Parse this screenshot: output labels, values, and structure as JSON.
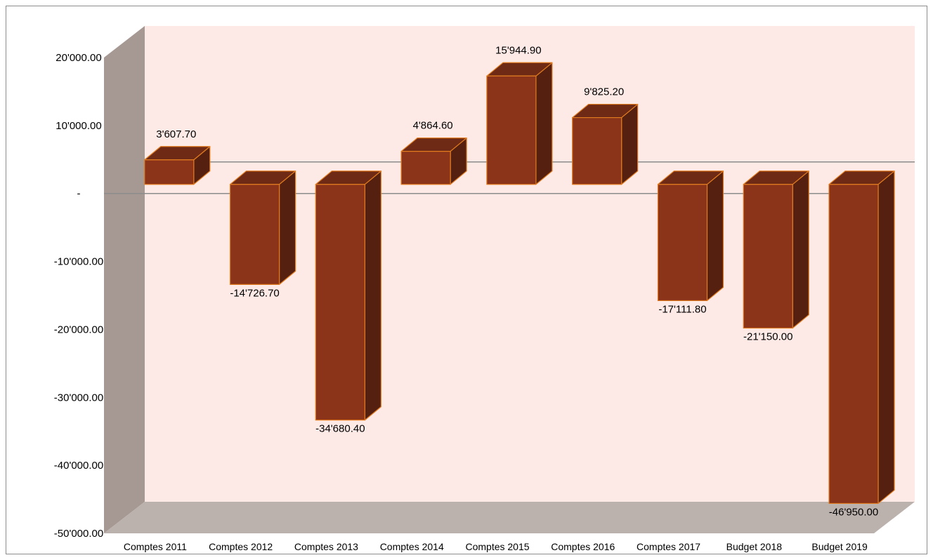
{
  "chart_data": {
    "type": "bar",
    "title": "",
    "xlabel": "",
    "ylabel": "",
    "categories": [
      "Comptes 2011",
      "Comptes 2012",
      "Comptes 2013",
      "Comptes 2014",
      "Comptes 2015",
      "Comptes 2016",
      "Comptes 2017",
      "Budget 2018",
      "Budget 2019"
    ],
    "values": [
      3607.7,
      -14726.7,
      -34680.4,
      4864.6,
      15944.9,
      9825.2,
      -17111.8,
      -21150.0,
      -46950.0
    ],
    "data_labels": [
      "3'607.70",
      "-14'726.70",
      "-34'680.40",
      "4'864.60",
      "15'944.90",
      "9'825.20",
      "-17'111.80",
      "-21'150.00",
      "-46'950.00"
    ],
    "ylim": [
      -50000,
      20000
    ],
    "y_ticks": [
      20000,
      10000,
      0,
      -10000,
      -20000,
      -30000,
      -40000,
      -50000
    ],
    "y_tick_labels": [
      "20'000.00",
      "10'000.00",
      "-",
      "-10'000.00",
      "-20'000.00",
      "-30'000.00",
      "-40'000.00",
      "-50'000.00"
    ],
    "grid": false,
    "legend": "none",
    "three_d": true,
    "colors": {
      "bar_front": "#8b3419",
      "bar_top": "#6e2a14",
      "bar_side": "#552010",
      "bar_edge": "#e07b20",
      "back_wall": "#fde9e5",
      "side_wall": "#a69892",
      "floor": "#bcb2ad",
      "axis_line": "#8c8c8c"
    }
  }
}
